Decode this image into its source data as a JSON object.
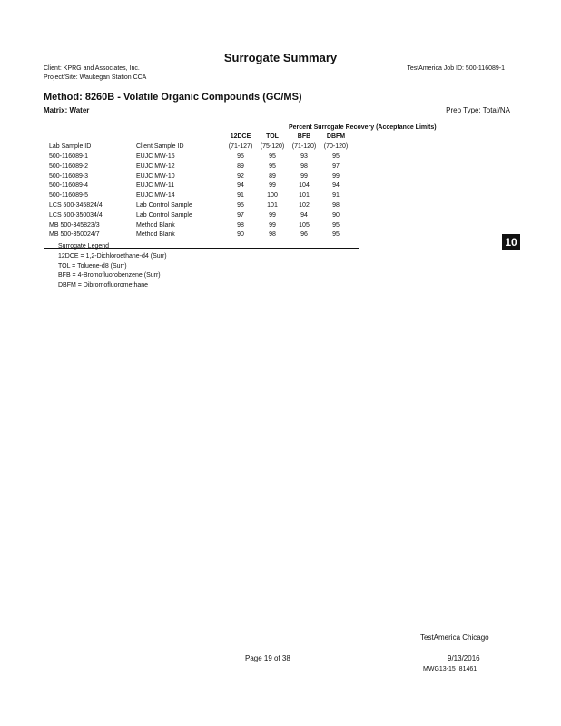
{
  "header": {
    "title": "Surrogate Summary",
    "client": "Client: KPRG and Associates, Inc.",
    "project": "Project/Site: Waukegan Station CCA",
    "job_id": "TestAmerica Job ID: 500-116089-1"
  },
  "method": "Method: 8260B - Volatile Organic Compounds (GC/MS)",
  "matrix": "Matrix: Water",
  "prep_type": "Prep Type: Total/NA",
  "table": {
    "group_header": "Percent Surrogate Recovery (Acceptance Limits)",
    "columns": [
      "Lab Sample ID",
      "Client Sample ID",
      "12DCE",
      "TOL",
      "BFB",
      "DBFM"
    ],
    "limits": [
      "(71-127)",
      "(75-120)",
      "(71-120)",
      "(70-120)"
    ],
    "rows": [
      [
        "500-116089-1",
        "EUJC MW-15",
        "95",
        "95",
        "93",
        "95"
      ],
      [
        "500-116089-2",
        "EUJC MW-12",
        "89",
        "95",
        "98",
        "97"
      ],
      [
        "500-116089-3",
        "EUJC MW-10",
        "92",
        "89",
        "99",
        "99"
      ],
      [
        "500-116089-4",
        "EUJC MW-11",
        "94",
        "99",
        "104",
        "94"
      ],
      [
        "500-116089-5",
        "EUJC MW-14",
        "91",
        "100",
        "101",
        "91"
      ],
      [
        "LCS 500-345824/4",
        "Lab Control Sample",
        "95",
        "101",
        "102",
        "98"
      ],
      [
        "LCS 500-350034/4",
        "Lab Control Sample",
        "97",
        "99",
        "94",
        "90"
      ],
      [
        "MB 500-345823/3",
        "Method Blank",
        "98",
        "99",
        "105",
        "95"
      ],
      [
        "MB 500-350024/7",
        "Method Blank",
        "90",
        "98",
        "96",
        "95"
      ]
    ]
  },
  "legend": {
    "title": "Surrogate Legend",
    "items": [
      "12DCE = 1,2-Dichloroethane-d4 (Surr)",
      "TOL = Toluene-d8 (Surr)",
      "BFB = 4-Bromofluorobenzene (Surr)",
      "DBFM = Dibromofluoromethane"
    ]
  },
  "badge": "10",
  "footer": {
    "lab": "TestAmerica Chicago",
    "page": "Page 19 of 38",
    "date": "9/13/2016",
    "code": "MWG13-15_81461"
  }
}
